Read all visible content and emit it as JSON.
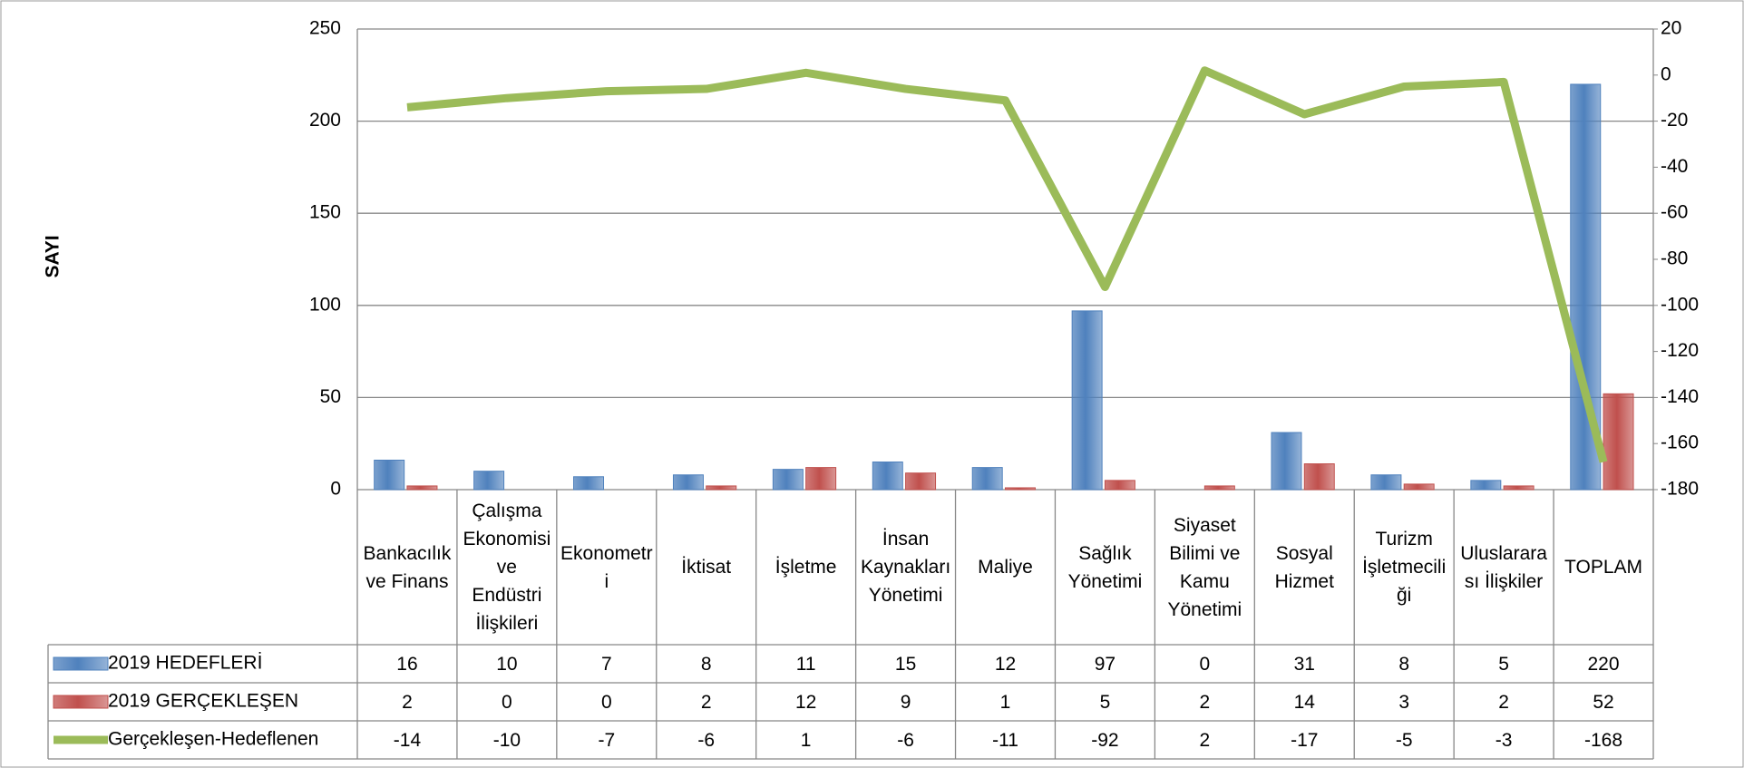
{
  "chart_data": {
    "type": "bar",
    "y_label": "SAYI",
    "categories": [
      "Bankacılık ve Finans",
      "Çalışma Ekonomisi ve Endüstri İlişkileri",
      "Ekonometri",
      "İktisat",
      "İşletme",
      "İnsan Kaynakları Yönetimi",
      "Maliye",
      "Sağlık Yönetimi",
      "Siyaset Bilimi ve Kamu Yönetimi",
      "Sosyal Hizmet",
      "Turizm İşletmeciliği",
      "Uluslararası İlişkiler",
      "TOPLAM"
    ],
    "series": [
      {
        "name": "2019 HEDEFLERİ",
        "color": "#4f81bd",
        "values": [
          16,
          10,
          7,
          8,
          11,
          15,
          12,
          97,
          0,
          31,
          8,
          5,
          220
        ]
      },
      {
        "name": "2019 GERÇEKLEŞEN",
        "color": "#c0504d",
        "values": [
          2,
          0,
          0,
          2,
          12,
          9,
          1,
          5,
          2,
          14,
          3,
          2,
          52
        ]
      },
      {
        "name": "Gerçekleşen-Hedeflenen",
        "color": "#9bbb59",
        "type": "line",
        "axis": "y2",
        "values": [
          -14,
          -10,
          -7,
          -6,
          1,
          -6,
          -11,
          -92,
          2,
          -17,
          -5,
          -3,
          -168
        ]
      }
    ],
    "ylim": [
      0,
      250
    ],
    "yticks": [
      0,
      50,
      100,
      150,
      200,
      250
    ],
    "y2lim": [
      -180,
      20
    ],
    "y2ticks": [
      -180,
      -160,
      -140,
      -120,
      -100,
      -80,
      -60,
      -40,
      -20,
      0,
      20
    ],
    "grid": true
  }
}
